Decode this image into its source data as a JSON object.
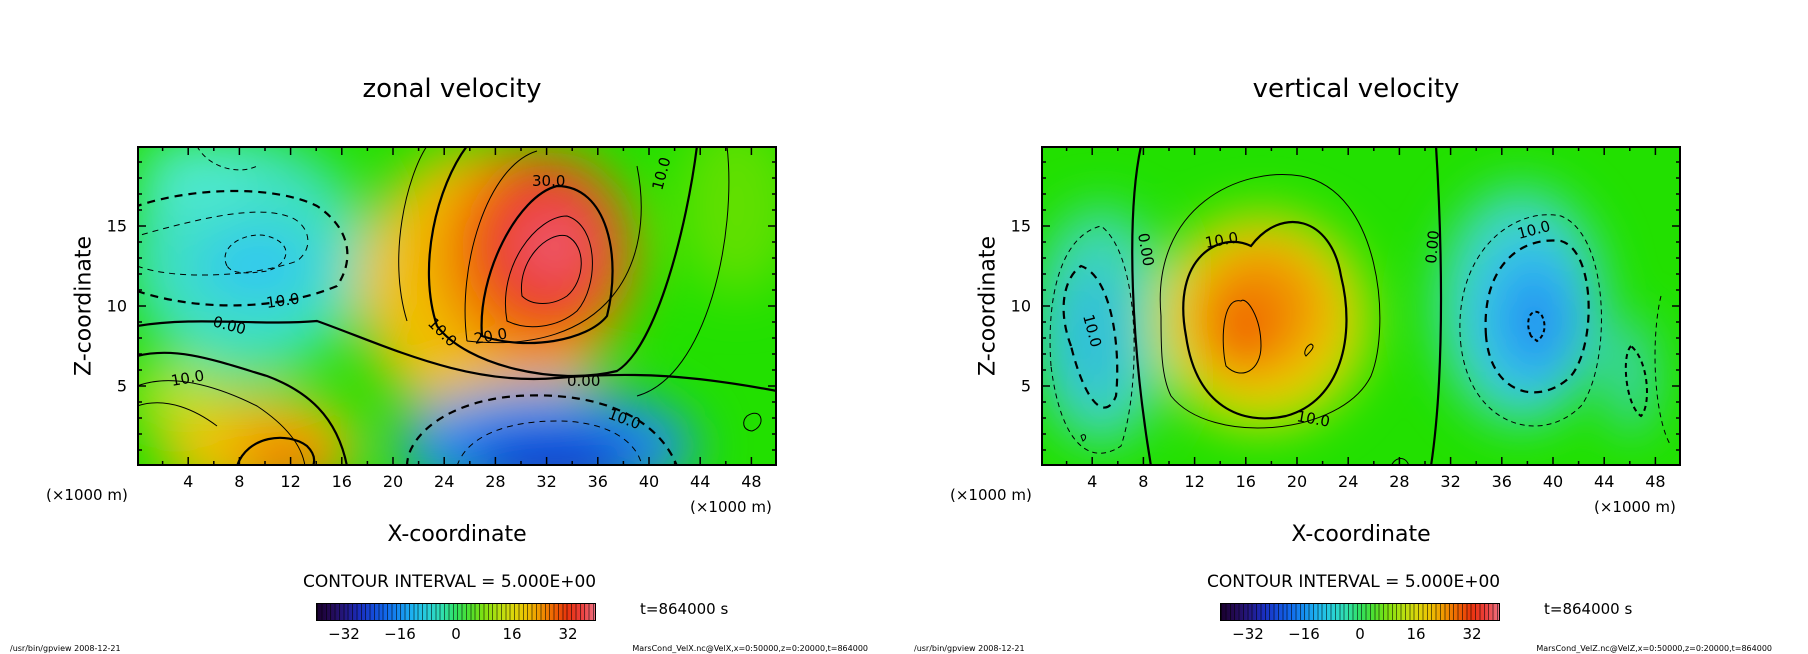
{
  "chart_data": [
    {
      "type": "contour",
      "title": "zonal velocity",
      "xlabel": "X-coordinate",
      "ylabel": "Z-coordinate",
      "x_unit": "(×1000 m)",
      "xlim": [
        0,
        50
      ],
      "ylim": [
        0,
        20
      ],
      "x_ticks": [
        "4",
        "8",
        "12",
        "16",
        "20",
        "24",
        "28",
        "32",
        "36",
        "40",
        "44",
        "48"
      ],
      "y_ticks": [
        "5",
        "10",
        "15"
      ],
      "contour_interval_text": "CONTOUR INTERVAL = 5.000E+00",
      "contour_interval": 5,
      "colorbar": {
        "min": -40,
        "max": 40,
        "ticks": [
          "−32",
          "−16",
          "0",
          "16",
          "32"
        ]
      },
      "contour_labels": [
        "30.0",
        "20.0",
        "10.0",
        "10.0",
        "0.00",
        "0.00",
        "10.0",
        "10.0",
        "10.0"
      ],
      "features": [
        {
          "kind": "max",
          "x": 31.5,
          "z": 13.5,
          "value": 35
        },
        {
          "kind": "min",
          "x": 32,
          "z": 0.5,
          "value": -38
        },
        {
          "kind": "min",
          "x": 9.5,
          "z": 12.5,
          "value": -15
        },
        {
          "kind": "max",
          "x": 12.5,
          "z": 0.5,
          "value": 25
        }
      ],
      "time_text": "t=864000 s",
      "footer_left": "/usr/bin/gpview   2008-12-21",
      "footer_right": "MarsCond_VelX.nc@VelX,x=0:50000,z=0:20000,t=864000"
    },
    {
      "type": "contour",
      "title": "vertical velocity",
      "xlabel": "X-coordinate",
      "ylabel": "Z-coordinate",
      "x_unit": "(×1000 m)",
      "xlim": [
        0,
        50
      ],
      "ylim": [
        0,
        20
      ],
      "x_ticks": [
        "4",
        "8",
        "12",
        "16",
        "20",
        "24",
        "28",
        "32",
        "36",
        "40",
        "44",
        "48"
      ],
      "y_ticks": [
        "5",
        "10",
        "15"
      ],
      "contour_interval_text": "CONTOUR INTERVAL = 5.000E+00",
      "contour_interval": 5,
      "colorbar": {
        "min": -40,
        "max": 40,
        "ticks": [
          "−32",
          "−16",
          "0",
          "16",
          "32"
        ]
      },
      "contour_labels": [
        "10.0",
        "10.0",
        "0.00",
        "0.00",
        "10.0",
        "10.0"
      ],
      "features": [
        {
          "kind": "max",
          "x": 20,
          "z": 8.5,
          "value": 22
        },
        {
          "kind": "min",
          "x": 39,
          "z": 9,
          "value": -18
        },
        {
          "kind": "min",
          "x": 4,
          "z": 7,
          "value": -12
        }
      ],
      "time_text": "t=864000 s",
      "footer_left": "/usr/bin/gpview   2008-12-21",
      "footer_right": "MarsCond_VelZ.nc@VelZ,x=0:50000,z=0:20000,t=864000"
    }
  ]
}
